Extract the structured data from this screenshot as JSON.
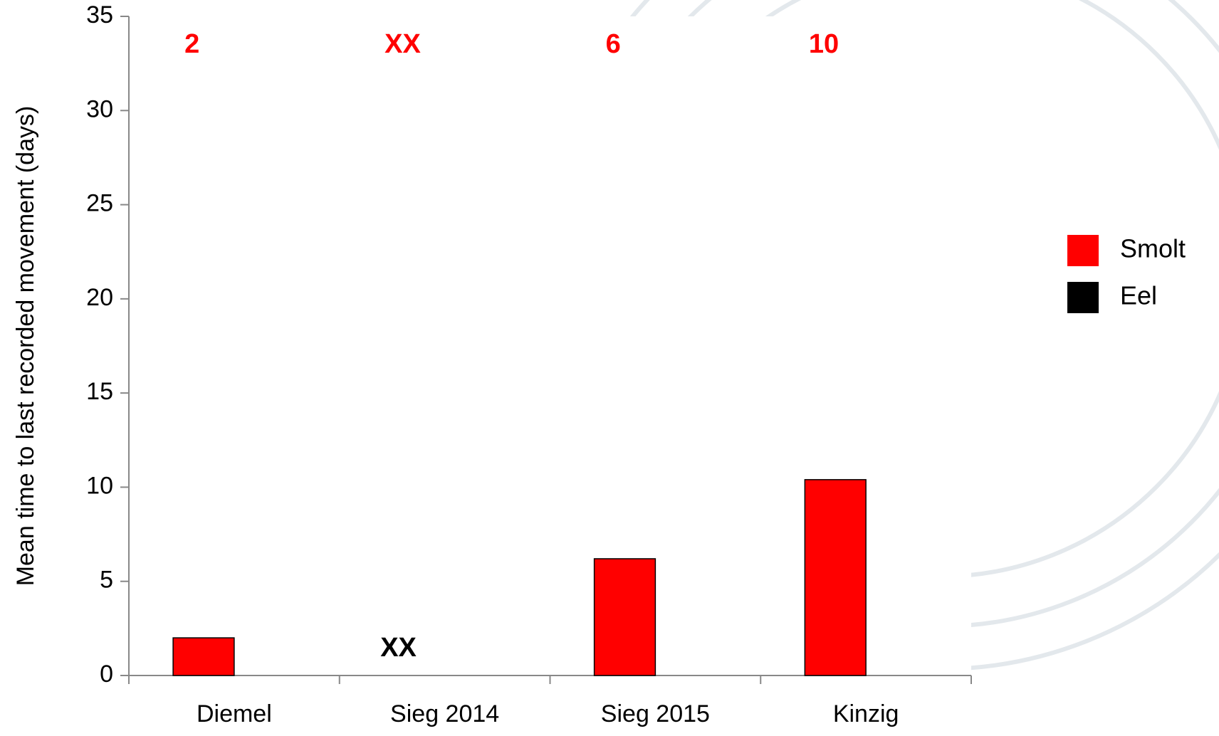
{
  "chart_data": {
    "type": "bar",
    "y_axis_label": "Mean time to last recorded movement (days)",
    "categories": [
      "Diemel",
      "Sieg 2014",
      "Sieg 2015",
      "Kinzig"
    ],
    "series": [
      {
        "name": "Smolt",
        "color": "#ff0000",
        "values": [
          2.0,
          null,
          6.2,
          10.4
        ]
      },
      {
        "name": "Eel",
        "color": "#000000",
        "values": [
          null,
          null,
          null,
          null
        ]
      }
    ],
    "top_labels": [
      "2",
      "XX",
      "6",
      "10"
    ],
    "top_label_color": "#ff0000",
    "no_data_label": "XX",
    "ylim": [
      0,
      35
    ],
    "yticks": [
      0,
      5,
      10,
      15,
      20,
      25,
      30,
      35
    ],
    "grid": false,
    "legend": "right"
  }
}
